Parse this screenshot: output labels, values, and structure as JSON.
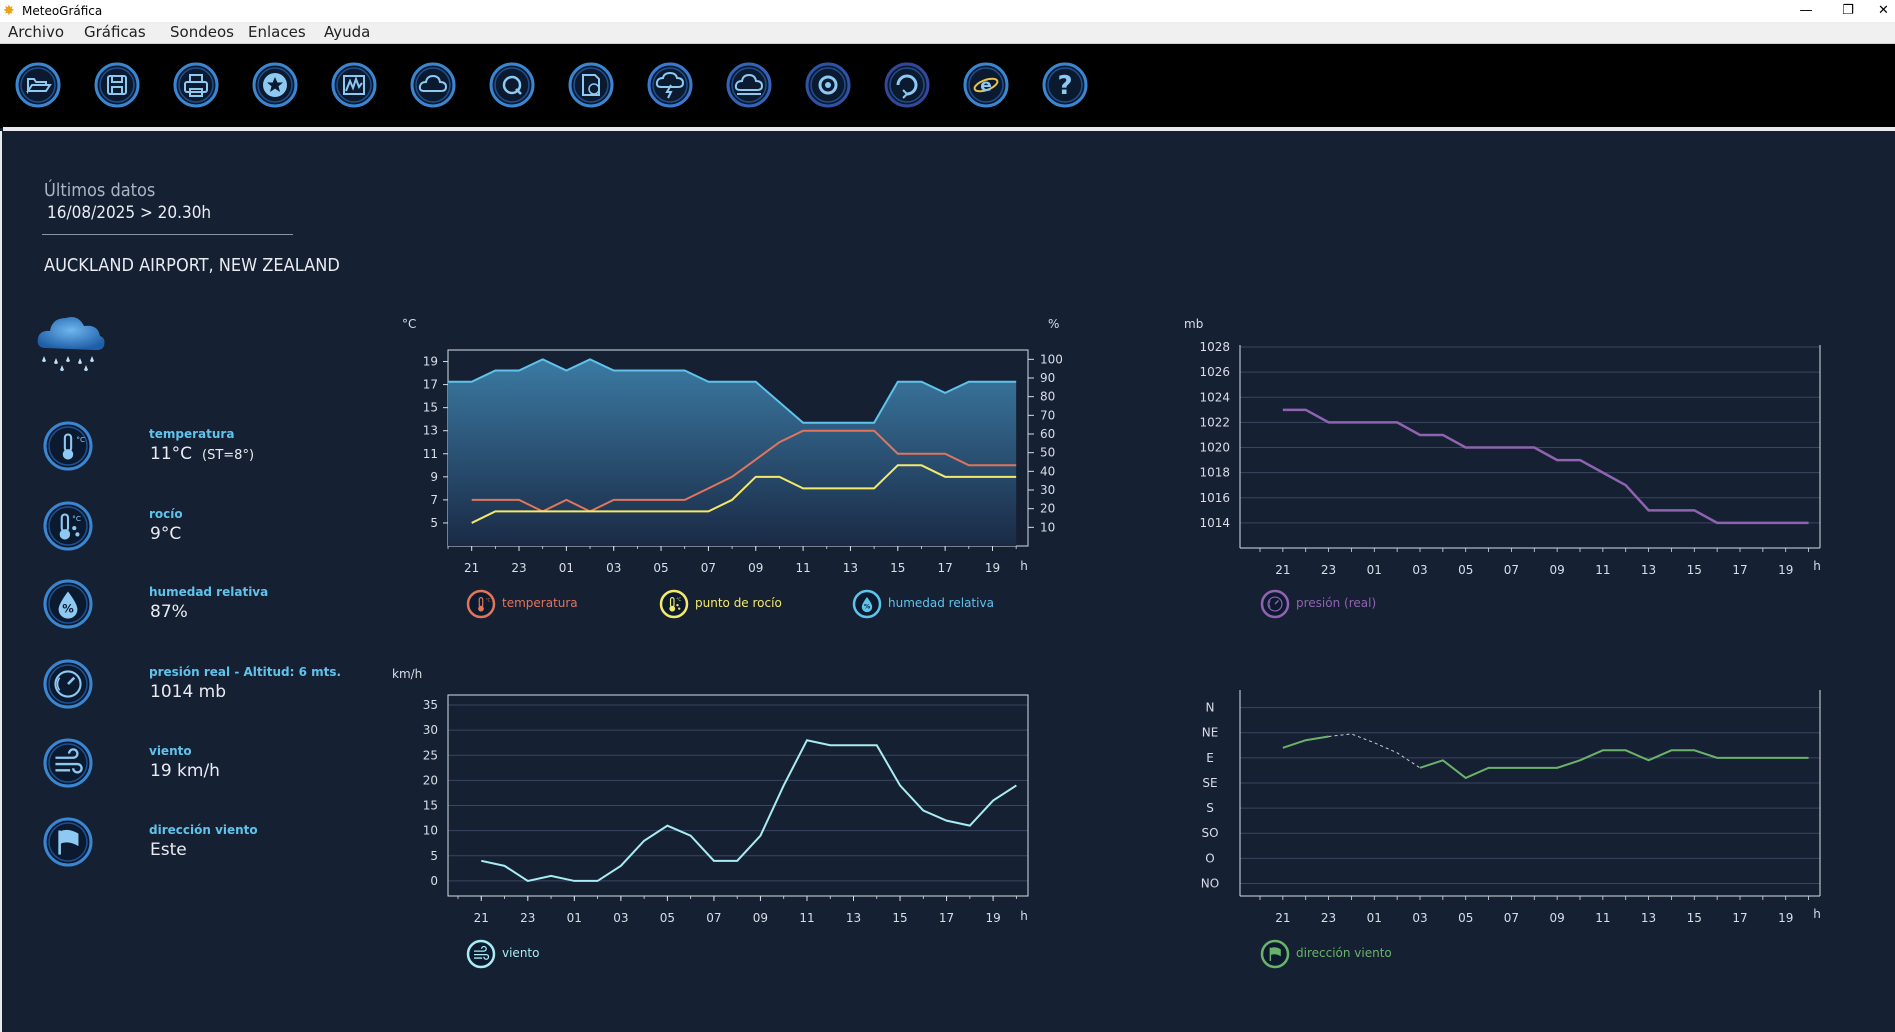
{
  "window": {
    "title": "MeteoGráfica"
  },
  "menu": [
    "Archivo",
    "Gráficas",
    "Sondeos",
    "Enlaces",
    "Ayuda"
  ],
  "toolbar": [
    "open-folder-icon",
    "save-icon",
    "print-icon",
    "star-icon",
    "graph-icon",
    "cloud-icon",
    "search-q-icon",
    "document-clock-icon",
    "lightning-cloud-icon",
    "cloud-outline-icon",
    "magnifier-icon",
    "refresh-icon",
    "internet-explorer-icon",
    "help-icon"
  ],
  "summary": {
    "heading": "Últimos datos",
    "datetime": "16/08/2025 > 20.30h",
    "location": "AUCKLAND AIRPORT, NEW ZEALAND",
    "weather_icon": "rain-cloud-icon",
    "items": [
      {
        "label": "temperatura",
        "value": "11°C",
        "extra": "(ST=8°)",
        "icon": "thermometer-icon"
      },
      {
        "label": "rocío",
        "value": "9°C",
        "extra": "",
        "icon": "dewpoint-icon"
      },
      {
        "label": "humedad relativa",
        "value": "87%",
        "extra": "",
        "icon": "humidity-icon"
      },
      {
        "label": "presión real - Altitud: 6 mts.",
        "value": "1014 mb",
        "extra": "",
        "icon": "barometer-icon"
      },
      {
        "label": "viento",
        "value": "19 km/h",
        "extra": "",
        "icon": "wind-icon"
      },
      {
        "label": "dirección viento",
        "value": "Este",
        "extra": "",
        "icon": "flag-icon"
      }
    ]
  },
  "colors": {
    "temperature": "#e0755c",
    "dewpoint": "#f4e96a",
    "humidity": "#5fc3ec",
    "pressure": "#8f63b0",
    "wind": "#a8ecf4",
    "direction": "#6ab26a",
    "axis": "#d8dde6",
    "grid": "#3a4560"
  },
  "chart_data": [
    {
      "type": "area",
      "name": "temperature-humidity",
      "ylabel": "°C",
      "y2label": "%",
      "ylim": [
        3,
        20
      ],
      "y2lim": [
        0,
        105
      ],
      "yticks": [
        "19",
        "17",
        "15",
        "13",
        "11",
        "9",
        "7",
        "5"
      ],
      "y2ticks": [
        "100",
        "90",
        "80",
        "70",
        "60",
        "50",
        "40",
        "30",
        "20",
        "10"
      ],
      "xticks": [
        "21",
        "23",
        "01",
        "03",
        "05",
        "07",
        "09",
        "11",
        "13",
        "15",
        "17",
        "19"
      ],
      "xunit": "h",
      "hours": [
        20,
        21,
        22,
        23,
        0,
        1,
        2,
        3,
        4,
        5,
        6,
        7,
        8,
        9,
        10,
        11,
        12,
        13,
        14,
        15,
        16,
        17,
        18,
        19,
        20
      ],
      "series": [
        {
          "name": "humedad relativa",
          "axis": "right",
          "values": [
            88,
            88,
            94,
            94,
            100,
            94,
            100,
            94,
            94,
            94,
            94,
            88,
            88,
            88,
            77,
            66,
            66,
            66,
            66,
            88,
            88,
            82,
            88,
            88,
            88
          ]
        },
        {
          "name": "temperatura",
          "axis": "left",
          "values": [
            null,
            7,
            7,
            7,
            6,
            7,
            6,
            7,
            7,
            7,
            7,
            8,
            9,
            10.5,
            12,
            13,
            13,
            13,
            13,
            11,
            11,
            11,
            10,
            10,
            10
          ]
        },
        {
          "name": "punto de rocío",
          "axis": "left",
          "values": [
            null,
            5,
            6,
            6,
            6,
            6,
            6,
            6,
            6,
            6,
            6,
            6,
            7,
            9,
            9,
            8,
            8,
            8,
            8,
            10,
            10,
            9,
            9,
            9,
            9
          ]
        }
      ],
      "legend": [
        "temperatura",
        "punto de rocío",
        "humedad relativa"
      ]
    },
    {
      "type": "line",
      "name": "pressure",
      "ylabel": "mb",
      "ylim": [
        1012,
        1028
      ],
      "yticks": [
        "1028",
        "1026",
        "1024",
        "1022",
        "1020",
        "1018",
        "1016",
        "1014"
      ],
      "xticks": [
        "21",
        "23",
        "01",
        "03",
        "05",
        "07",
        "09",
        "11",
        "13",
        "15",
        "17",
        "19"
      ],
      "xunit": "h",
      "hours": [
        20,
        21,
        22,
        23,
        0,
        1,
        2,
        3,
        4,
        5,
        6,
        7,
        8,
        9,
        10,
        11,
        12,
        13,
        14,
        15,
        16,
        17,
        18,
        19,
        20
      ],
      "series": [
        {
          "name": "presión (real)",
          "values": [
            null,
            1023,
            1023,
            1022,
            1022,
            1022,
            1022,
            1021,
            1021,
            1020,
            1020,
            1020,
            1020,
            1019,
            1019,
            1018,
            1017,
            1015,
            1015,
            1015,
            1014,
            1014,
            1014,
            1014,
            1014
          ]
        }
      ],
      "legend": [
        "presión (real)"
      ]
    },
    {
      "type": "line",
      "name": "wind-speed",
      "ylabel": "km/h",
      "ylim": [
        -3,
        37
      ],
      "yticks": [
        "35",
        "30",
        "25",
        "20",
        "15",
        "10",
        "5",
        "0"
      ],
      "xticks": [
        "21",
        "23",
        "01",
        "03",
        "05",
        "07",
        "09",
        "11",
        "13",
        "15",
        "17",
        "19"
      ],
      "xunit": "h",
      "hours": [
        20,
        21,
        22,
        23,
        0,
        1,
        2,
        3,
        4,
        5,
        6,
        7,
        8,
        9,
        10,
        11,
        12,
        13,
        14,
        15,
        16,
        17,
        18,
        19,
        20
      ],
      "series": [
        {
          "name": "viento",
          "values": [
            null,
            4,
            3,
            0,
            1,
            0,
            0,
            3,
            8,
            11,
            9,
            4,
            4,
            9,
            19,
            28,
            27,
            27,
            27,
            19,
            14,
            12,
            11,
            16,
            19
          ]
        }
      ],
      "legend": [
        "viento"
      ]
    },
    {
      "type": "line",
      "name": "wind-direction",
      "yticks": [
        "N",
        "NE",
        "E",
        "SE",
        "S",
        "SO",
        "O",
        "NO"
      ],
      "ylim": [
        -0.5,
        7.5
      ],
      "xticks": [
        "21",
        "23",
        "01",
        "03",
        "05",
        "07",
        "09",
        "11",
        "13",
        "15",
        "17",
        "19"
      ],
      "xunit": "h",
      "hours": [
        20,
        21,
        22,
        23,
        0,
        1,
        2,
        3,
        4,
        5,
        6,
        7,
        8,
        9,
        10,
        11,
        12,
        13,
        14,
        15,
        16,
        17,
        18,
        19,
        20
      ],
      "series": [
        {
          "name": "dirección viento",
          "values": [
            null,
            1.6,
            1.3,
            1.15,
            1.05,
            1.4,
            1.8,
            2.4,
            2.1,
            2.8,
            2.4,
            2.4,
            2.4,
            2.4,
            2.1,
            1.7,
            1.7,
            2.1,
            1.7,
            1.7,
            2.0,
            2.0,
            2.0,
            2.0,
            2.0
          ],
          "dashed_segments": [
            [
              3,
              6
            ]
          ]
        }
      ],
      "legend": [
        "dirección viento"
      ]
    }
  ]
}
